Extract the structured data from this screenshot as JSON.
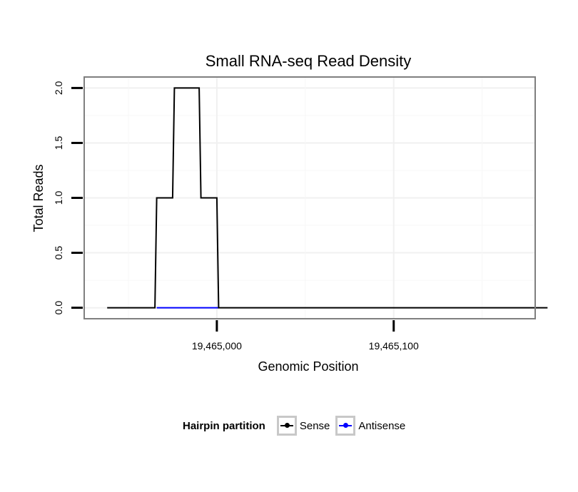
{
  "chart_data": {
    "type": "line",
    "title": "Small RNA-seq Read Density",
    "xlabel": "Genomic Position",
    "ylabel": "Total Reads",
    "xlim": [
      19464925,
      19465180
    ],
    "ylim": [
      -0.1,
      2.1
    ],
    "x_ticks": [
      19465000,
      19465100
    ],
    "x_tick_labels": [
      "19,465,000",
      "19,465,100"
    ],
    "y_ticks": [
      0,
      0.5,
      1.0,
      1.5,
      2.0
    ],
    "y_tick_labels": [
      "0.0",
      "0.5",
      "1.0",
      "1.5",
      "2.0"
    ],
    "grid": true,
    "legend_position": "bottom",
    "series": [
      {
        "name": "Sense",
        "color": "#000000",
        "x": [
          19464938,
          19464965,
          19464966,
          19464975,
          19464976,
          19464990,
          19464991,
          19465000,
          19465001,
          19465187
        ],
        "y": [
          0,
          0,
          1,
          1,
          2,
          2,
          1,
          1,
          0,
          0
        ]
      },
      {
        "name": "Antisense",
        "color": "#0000ff",
        "x": [
          19464966,
          19465001
        ],
        "y": [
          0,
          0
        ]
      }
    ]
  },
  "legend": {
    "title": "Hairpin partition",
    "items": [
      {
        "label": "Sense",
        "color": "#000000"
      },
      {
        "label": "Antisense",
        "color": "#0000ff"
      }
    ]
  }
}
